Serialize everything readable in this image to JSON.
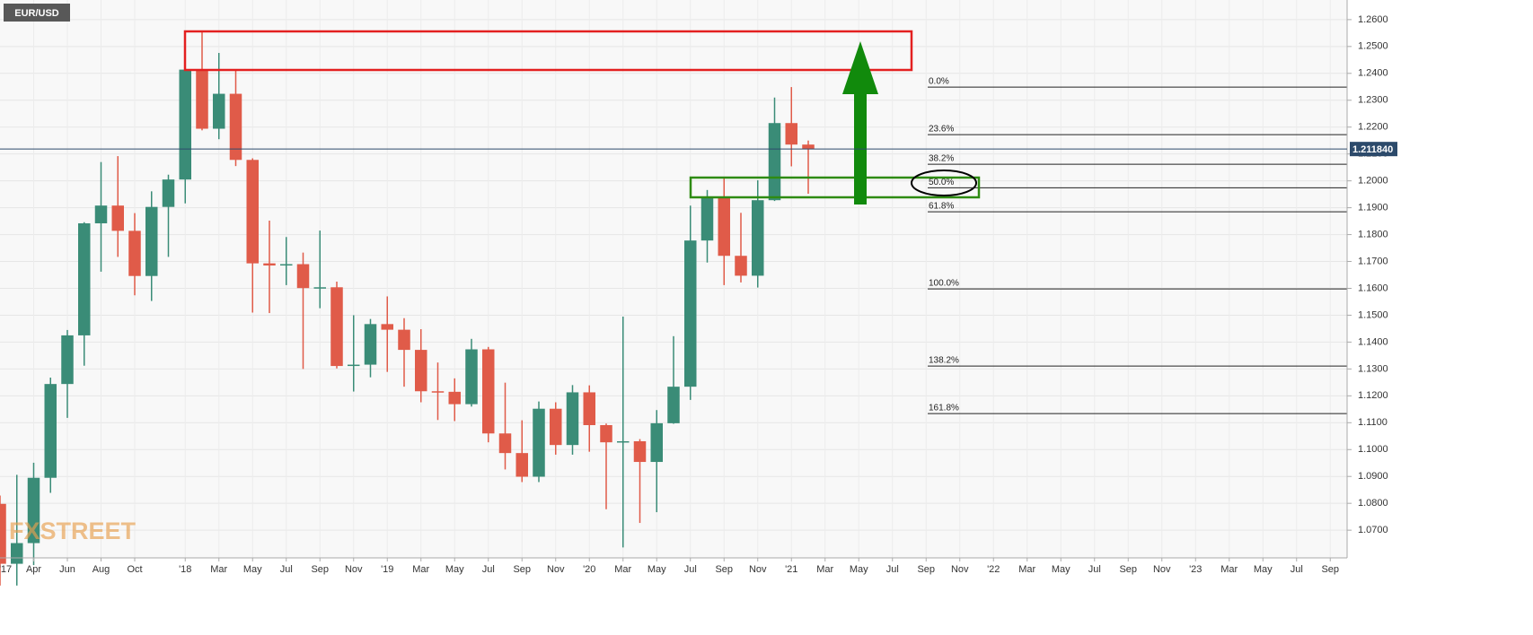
{
  "chart_data": {
    "type": "candlestick",
    "title": "EUR/USD",
    "watermark": "FXSTREET",
    "x": [
      "2017-02",
      "2017-03",
      "2017-04",
      "2017-05",
      "2017-06",
      "2017-07",
      "2017-08",
      "2017-09",
      "2017-10",
      "2017-11",
      "2017-12",
      "2018-01",
      "2018-02",
      "2018-03",
      "2018-04",
      "2018-05",
      "2018-06",
      "2018-07",
      "2018-08",
      "2018-09",
      "2018-10",
      "2018-11",
      "2018-12",
      "2019-01",
      "2019-02",
      "2019-03",
      "2019-04",
      "2019-05",
      "2019-06",
      "2019-07",
      "2019-08",
      "2019-09",
      "2019-10",
      "2019-11",
      "2019-12",
      "2020-01",
      "2020-02",
      "2020-03",
      "2020-04",
      "2020-05",
      "2020-06",
      "2020-07",
      "2020-08",
      "2020-09",
      "2020-10",
      "2020-11",
      "2020-12",
      "2021-01",
      "2021-02"
    ],
    "open": [
      1.0798,
      1.0575,
      1.0652,
      1.0895,
      1.1244,
      1.1425,
      1.1842,
      1.1908,
      1.1814,
      1.1646,
      1.1903,
      1.2005,
      1.2414,
      1.2194,
      1.2324,
      1.2078,
      1.1693,
      1.1685,
      1.169,
      1.1601,
      1.1604,
      1.1311,
      1.1316,
      1.1467,
      1.1446,
      1.1371,
      1.1217,
      1.1215,
      1.1169,
      1.1373,
      1.106,
      1.0987,
      1.0899,
      1.1152,
      1.1017,
      1.1213,
      1.1091,
      1.1027,
      1.1031,
      1.0954,
      1.1098,
      1.1234,
      1.1778,
      1.1936,
      1.1721,
      1.1647,
      1.1928,
      1.2215,
      1.2135
    ],
    "high": [
      1.0829,
      1.0906,
      1.0951,
      1.1268,
      1.1445,
      1.1846,
      1.207,
      1.2092,
      1.188,
      1.1961,
      1.2023,
      1.2537,
      1.2555,
      1.2476,
      1.2414,
      1.2084,
      1.1852,
      1.1791,
      1.1733,
      1.1815,
      1.1625,
      1.15,
      1.1486,
      1.157,
      1.1489,
      1.1448,
      1.1324,
      1.1265,
      1.1412,
      1.1382,
      1.1249,
      1.1109,
      1.1179,
      1.1176,
      1.124,
      1.1239,
      1.1097,
      1.1495,
      1.1039,
      1.1147,
      1.1422,
      1.1908,
      1.1966,
      1.2011,
      1.1881,
      1.2002,
      1.231,
      1.2349,
      1.215
    ],
    "low": [
      1.0494,
      1.0494,
      1.057,
      1.0839,
      1.1118,
      1.1312,
      1.1662,
      1.1717,
      1.1574,
      1.1553,
      1.1717,
      1.1916,
      1.2188,
      1.2155,
      1.2055,
      1.151,
      1.1508,
      1.1612,
      1.13,
      1.1526,
      1.1302,
      1.1216,
      1.1269,
      1.1289,
      1.1234,
      1.1176,
      1.111,
      1.1106,
      1.116,
      1.1027,
      1.0926,
      1.0879,
      1.0879,
      1.0981,
      1.0981,
      1.0992,
      1.0778,
      1.0636,
      1.0727,
      1.0767,
      1.1096,
      1.1185,
      1.1696,
      1.1612,
      1.1622,
      1.1603,
      1.1925,
      1.2054,
      1.1952
    ],
    "close": [
      1.0575,
      1.0652,
      1.0895,
      1.1244,
      1.1425,
      1.1842,
      1.1908,
      1.1814,
      1.1646,
      1.1903,
      1.2005,
      1.2414,
      1.2194,
      1.2324,
      1.2078,
      1.1693,
      1.1685,
      1.169,
      1.1601,
      1.1604,
      1.1311,
      1.1316,
      1.1467,
      1.1446,
      1.1371,
      1.1217,
      1.1215,
      1.1169,
      1.1373,
      1.106,
      1.0987,
      1.0899,
      1.1152,
      1.1017,
      1.1213,
      1.1091,
      1.1027,
      1.1031,
      1.0954,
      1.1098,
      1.1234,
      1.1778,
      1.1936,
      1.1721,
      1.1647,
      1.1928,
      1.2215,
      1.2135,
      1.2118
    ],
    "up_color": "#3a8c77",
    "down_color": "#e05b49",
    "xlim": [
      "2017-02",
      "2023-10"
    ],
    "xticks": [
      {
        "value": "2017-01",
        "label": "'17"
      },
      {
        "value": "2017-04",
        "label": "Apr"
      },
      {
        "value": "2017-06",
        "label": "Jun"
      },
      {
        "value": "2017-08",
        "label": "Aug"
      },
      {
        "value": "2017-10",
        "label": "Oct"
      },
      {
        "value": "2018-01",
        "label": "'18"
      },
      {
        "value": "2018-03",
        "label": "Mar"
      },
      {
        "value": "2018-05",
        "label": "May"
      },
      {
        "value": "2018-07",
        "label": "Jul"
      },
      {
        "value": "2018-09",
        "label": "Sep"
      },
      {
        "value": "2018-11",
        "label": "Nov"
      },
      {
        "value": "2019-01",
        "label": "'19"
      },
      {
        "value": "2019-03",
        "label": "Mar"
      },
      {
        "value": "2019-05",
        "label": "May"
      },
      {
        "value": "2019-07",
        "label": "Jul"
      },
      {
        "value": "2019-09",
        "label": "Sep"
      },
      {
        "value": "2019-11",
        "label": "Nov"
      },
      {
        "value": "2020-01",
        "label": "'20"
      },
      {
        "value": "2020-03",
        "label": "Mar"
      },
      {
        "value": "2020-05",
        "label": "May"
      },
      {
        "value": "2020-07",
        "label": "Jul"
      },
      {
        "value": "2020-09",
        "label": "Sep"
      },
      {
        "value": "2020-11",
        "label": "Nov"
      },
      {
        "value": "2021-01",
        "label": "'21"
      },
      {
        "value": "2021-03",
        "label": "Mar"
      },
      {
        "value": "2021-05",
        "label": "May"
      },
      {
        "value": "2021-07",
        "label": "Jul"
      },
      {
        "value": "2021-09",
        "label": "Sep"
      },
      {
        "value": "2021-11",
        "label": "Nov"
      },
      {
        "value": "2022-01",
        "label": "'22"
      },
      {
        "value": "2022-03",
        "label": "Mar"
      },
      {
        "value": "2022-05",
        "label": "May"
      },
      {
        "value": "2022-07",
        "label": "Jul"
      },
      {
        "value": "2022-09",
        "label": "Sep"
      },
      {
        "value": "2022-11",
        "label": "Nov"
      },
      {
        "value": "2023-01",
        "label": "'23"
      },
      {
        "value": "2023-03",
        "label": "Mar"
      },
      {
        "value": "2023-05",
        "label": "May"
      },
      {
        "value": "2023-07",
        "label": "Jul"
      },
      {
        "value": "2023-09",
        "label": "Sep"
      }
    ],
    "ylim": [
      1.0597,
      1.2673
    ],
    "yticks": [
      {
        "value": 1.07,
        "label": "1.0700"
      },
      {
        "value": 1.08,
        "label": "1.0800"
      },
      {
        "value": 1.09,
        "label": "1.0900"
      },
      {
        "value": 1.1,
        "label": "1.1000"
      },
      {
        "value": 1.11,
        "label": "1.1100"
      },
      {
        "value": 1.12,
        "label": "1.1200"
      },
      {
        "value": 1.13,
        "label": "1.1300"
      },
      {
        "value": 1.14,
        "label": "1.1400"
      },
      {
        "value": 1.15,
        "label": "1.1500"
      },
      {
        "value": 1.16,
        "label": "1.1600"
      },
      {
        "value": 1.17,
        "label": "1.1700"
      },
      {
        "value": 1.18,
        "label": "1.1800"
      },
      {
        "value": 1.19,
        "label": "1.1900"
      },
      {
        "value": 1.2,
        "label": "1.2000"
      },
      {
        "value": 1.21,
        "label": "1.2100"
      },
      {
        "value": 1.22,
        "label": "1.2200"
      },
      {
        "value": 1.23,
        "label": "1.2300"
      },
      {
        "value": 1.24,
        "label": "1.2400"
      },
      {
        "value": 1.25,
        "label": "1.2500"
      },
      {
        "value": 1.26,
        "label": "1.2600"
      }
    ],
    "grid": true,
    "last_price": 1.21184,
    "last_price_label": "1.211840",
    "fib_levels": [
      {
        "value": 1.2349,
        "label": "0.0%"
      },
      {
        "value": 1.2172,
        "label": "23.6%"
      },
      {
        "value": 1.2062,
        "label": "38.2%"
      },
      {
        "value": 1.1974,
        "label": "50.0%"
      },
      {
        "value": 1.1885,
        "label": "61.8%"
      },
      {
        "value": 1.1598,
        "label": "100.0%"
      },
      {
        "value": 1.1311,
        "label": "138.2%"
      },
      {
        "value": 1.1134,
        "label": "161.8%"
      }
    ]
  }
}
